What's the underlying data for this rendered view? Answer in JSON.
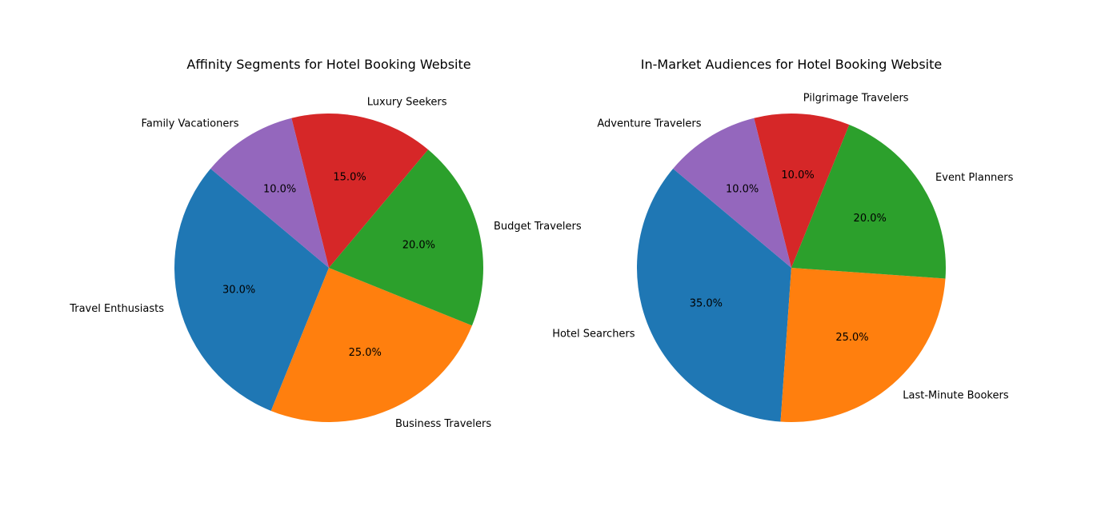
{
  "chart_data": [
    {
      "type": "pie",
      "title": "Affinity Segments for Hotel Booking Website",
      "start_angle": 140,
      "direction": "counterclockwise",
      "slices": [
        {
          "label": "Travel Enthusiasts",
          "value": 30.0,
          "pct_label": "30.0%",
          "color": "#1f77b4"
        },
        {
          "label": "Business Travelers",
          "value": 25.0,
          "pct_label": "25.0%",
          "color": "#ff7f0e"
        },
        {
          "label": "Budget Travelers",
          "value": 20.0,
          "pct_label": "20.0%",
          "color": "#2ca02c"
        },
        {
          "label": "Luxury Seekers",
          "value": 15.0,
          "pct_label": "15.0%",
          "color": "#d62728"
        },
        {
          "label": "Family Vacationers",
          "value": 10.0,
          "pct_label": "10.0%",
          "color": "#9467bd"
        }
      ]
    },
    {
      "type": "pie",
      "title": "In-Market Audiences for Hotel Booking Website",
      "start_angle": 140,
      "direction": "counterclockwise",
      "slices": [
        {
          "label": "Hotel Searchers",
          "value": 35.0,
          "pct_label": "35.0%",
          "color": "#1f77b4"
        },
        {
          "label": "Last-Minute Bookers",
          "value": 25.0,
          "pct_label": "25.0%",
          "color": "#ff7f0e"
        },
        {
          "label": "Event Planners",
          "value": 20.0,
          "pct_label": "20.0%",
          "color": "#2ca02c"
        },
        {
          "label": "Pilgrimage Travelers",
          "value": 10.0,
          "pct_label": "10.0%",
          "color": "#d62728"
        },
        {
          "label": "Adventure Travelers",
          "value": 10.0,
          "pct_label": "10.0%",
          "color": "#9467bd"
        }
      ]
    }
  ]
}
